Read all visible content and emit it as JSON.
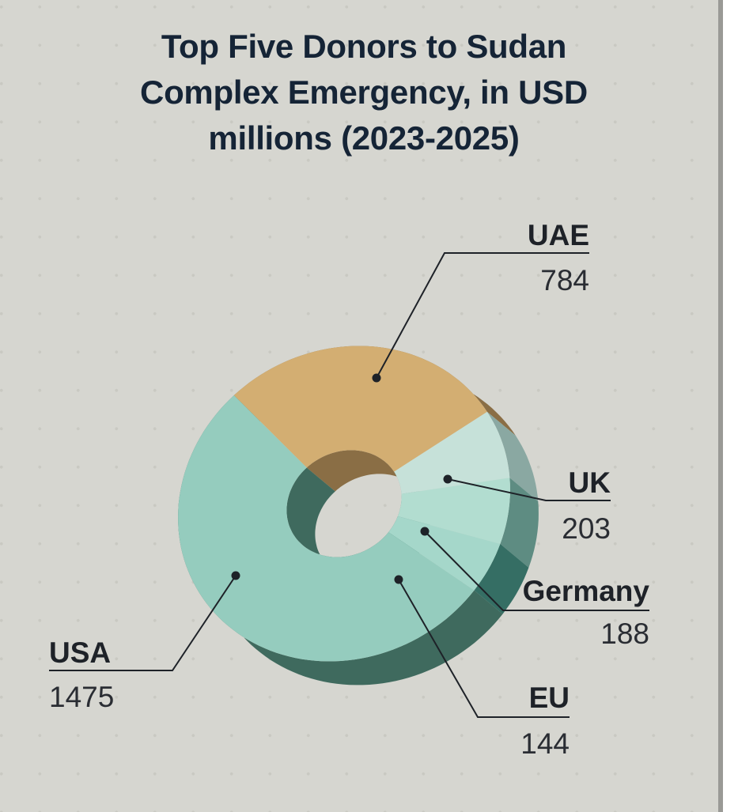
{
  "title": "Top Five Donors to Sudan Complex Emergency, in USD millions (2023-2025)",
  "colors": {
    "background": "#d6d6d0",
    "title": "#152436",
    "leader": "#1e2228"
  },
  "chart_data": {
    "type": "pie",
    "style": "3d-donut",
    "title": "Top Five Donors to Sudan Complex Emergency, in USD millions (2023-2025)",
    "unit": "USD millions",
    "categories": [
      "UAE",
      "UK",
      "Germany",
      "EU",
      "USA"
    ],
    "values": [
      784,
      203,
      188,
      144,
      1475
    ],
    "colors": [
      "#d3ae72",
      "#c6e1d9",
      "#b2ddd0",
      "#a5d7ca",
      "#95ccbe"
    ],
    "side_colors": [
      "#8a6e45",
      "#8aa8a2",
      "#5e8c82",
      "#356e64",
      "#3f6a5e"
    ]
  }
}
